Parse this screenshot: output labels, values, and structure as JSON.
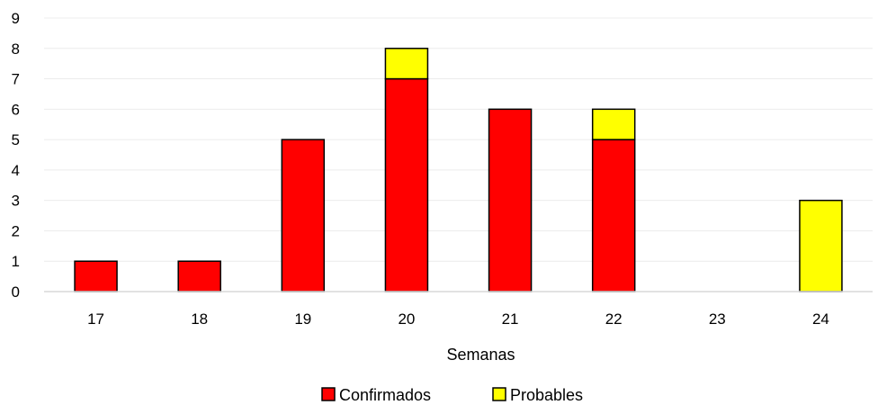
{
  "chart_data": {
    "type": "bar",
    "stacked": true,
    "categories": [
      "17",
      "18",
      "19",
      "20",
      "21",
      "22",
      "23",
      "24"
    ],
    "series": [
      {
        "name": "Confirmados",
        "color": "#FF0000",
        "values": [
          1,
          1,
          5,
          7,
          6,
          5,
          0,
          0
        ]
      },
      {
        "name": "Probables",
        "color": "#FFFF00",
        "values": [
          0,
          0,
          0,
          1,
          0,
          1,
          0,
          3
        ]
      }
    ],
    "title": "",
    "xlabel": "Semanas",
    "ylabel": "",
    "ylim": [
      0,
      9
    ],
    "yticks": [
      "0",
      "1",
      "2",
      "3",
      "4",
      "5",
      "6",
      "7",
      "8",
      "9"
    ],
    "grid": true,
    "legend_position": "bottom"
  }
}
